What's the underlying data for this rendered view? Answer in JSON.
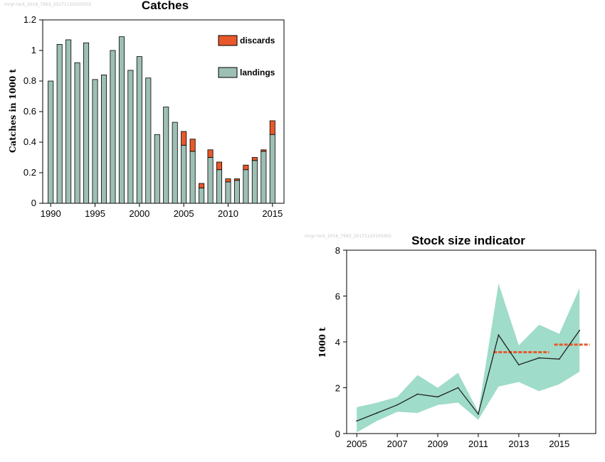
{
  "chart_data": [
    {
      "type": "bar",
      "stacked": true,
      "title": "Catches",
      "watermark": "mrgr-rock_2016_7993_20171120105002",
      "xlabel": "",
      "ylabel": "Catches in 1000 t",
      "categories": [
        1990,
        1991,
        1992,
        1993,
        1994,
        1995,
        1996,
        1997,
        1998,
        1999,
        2000,
        2001,
        2002,
        2003,
        2004,
        2005,
        2006,
        2007,
        2008,
        2009,
        2010,
        2011,
        2012,
        2013,
        2014,
        2015
      ],
      "series": [
        {
          "name": "landings",
          "color": "#9dbfb4",
          "values": [
            0.8,
            1.04,
            1.07,
            0.92,
            1.05,
            0.81,
            0.84,
            1.0,
            1.09,
            0.87,
            0.96,
            0.82,
            0.45,
            0.63,
            0.53,
            0.38,
            0.34,
            0.1,
            0.3,
            0.22,
            0.14,
            0.15,
            0.22,
            0.28,
            0.34,
            0.45
          ]
        },
        {
          "name": "discards",
          "color": "#e8582a",
          "values": [
            0,
            0,
            0,
            0,
            0,
            0,
            0,
            0,
            0,
            0,
            0,
            0,
            0,
            0,
            0,
            0.09,
            0.08,
            0.03,
            0.05,
            0.05,
            0.02,
            0.01,
            0.03,
            0.02,
            0.01,
            0.09
          ]
        }
      ],
      "ylim": [
        0,
        1.2
      ],
      "yticks": [
        0,
        0.2,
        0.4,
        0.6,
        0.8,
        1,
        1.2
      ],
      "ytick_labels": [
        "0",
        "0.2",
        "0.4",
        "0.6",
        "0.8",
        "1",
        "1.2"
      ],
      "xticks": [
        1990,
        1995,
        2000,
        2005,
        2010,
        2015
      ],
      "legend": [
        "discards",
        "landings"
      ],
      "legend_position": "top-right"
    },
    {
      "type": "line",
      "title": "Stock size indicator",
      "watermark": "mrgr-rock_2016_7993_20171120105002",
      "xlabel": "",
      "ylabel": "1000 t",
      "x": [
        2005,
        2006,
        2007,
        2008,
        2009,
        2010,
        2011,
        2012,
        2013,
        2014,
        2015,
        2016
      ],
      "series": [
        {
          "name": "",
          "color": "#222222",
          "values": [
            0.55,
            0.9,
            1.25,
            1.72,
            1.6,
            2.0,
            0.85,
            4.3,
            3.0,
            3.3,
            3.25,
            4.5
          ]
        }
      ],
      "band": {
        "color": "#9fdcc9",
        "lower": [
          0.05,
          0.55,
          0.95,
          0.9,
          1.25,
          1.35,
          0.6,
          2.05,
          2.25,
          1.85,
          2.15,
          2.7
        ],
        "upper": [
          1.15,
          1.35,
          1.6,
          2.55,
          2.0,
          2.65,
          0.95,
          6.55,
          3.85,
          4.75,
          4.35,
          6.35
        ]
      },
      "reference_lines": [
        {
          "from": 2011.75,
          "to": 2014.5,
          "value": 3.55,
          "color": "#e8582a",
          "style": "dashed"
        },
        {
          "from": 2014.75,
          "to": 2016.5,
          "value": 3.88,
          "color": "#e8582a",
          "style": "dashed"
        }
      ],
      "xlim": [
        2004.5,
        2016.8
      ],
      "ylim": [
        0,
        8
      ],
      "yticks": [
        0,
        2,
        4,
        6,
        8
      ],
      "xticks": [
        2005,
        2007,
        2009,
        2011,
        2013,
        2015
      ]
    }
  ]
}
